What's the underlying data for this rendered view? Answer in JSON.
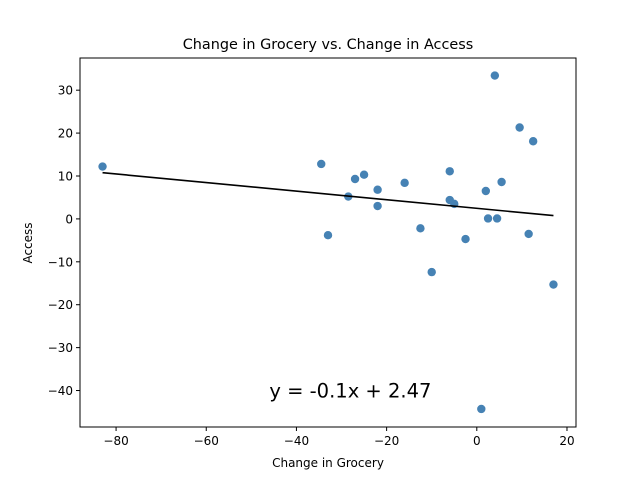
{
  "chart_data": {
    "type": "scatter",
    "title": "Change in Grocery vs. Change in Access",
    "xlabel": "Change in Grocery",
    "ylabel": "Access",
    "xlim": [
      -88,
      22
    ],
    "ylim": [
      -48.5,
      37.5
    ],
    "xticks": [
      -80,
      -60,
      -40,
      -20,
      0,
      20
    ],
    "yticks": [
      -40,
      -30,
      -20,
      -10,
      0,
      10,
      20,
      30
    ],
    "xtick_labels": [
      "−80",
      "−60",
      "−40",
      "−20",
      "0",
      "20"
    ],
    "ytick_labels": [
      "−40",
      "−30",
      "−20",
      "−10",
      "0",
      "10",
      "20",
      "30"
    ],
    "grid": false,
    "point_color": "#4682b4",
    "line_color": "#000000",
    "points": [
      {
        "x": -83.0,
        "y": 12.2
      },
      {
        "x": -34.5,
        "y": 12.8
      },
      {
        "x": -33.0,
        "y": -3.8
      },
      {
        "x": -28.5,
        "y": 5.2
      },
      {
        "x": -27.0,
        "y": 9.3
      },
      {
        "x": -25.0,
        "y": 10.3
      },
      {
        "x": -22.0,
        "y": 6.8
      },
      {
        "x": -22.0,
        "y": 3.0
      },
      {
        "x": -16.0,
        "y": 8.4
      },
      {
        "x": -12.5,
        "y": -2.2
      },
      {
        "x": -10.0,
        "y": -12.4
      },
      {
        "x": -6.0,
        "y": 11.1
      },
      {
        "x": -6.0,
        "y": 4.4
      },
      {
        "x": -5.0,
        "y": 3.5
      },
      {
        "x": -2.5,
        "y": -4.7
      },
      {
        "x": 1.0,
        "y": -44.3
      },
      {
        "x": 2.0,
        "y": 6.5
      },
      {
        "x": 2.5,
        "y": 0.1
      },
      {
        "x": 4.0,
        "y": 33.4
      },
      {
        "x": 4.5,
        "y": 0.1
      },
      {
        "x": 5.5,
        "y": 8.6
      },
      {
        "x": 9.5,
        "y": 21.3
      },
      {
        "x": 11.5,
        "y": -3.5
      },
      {
        "x": 12.5,
        "y": 18.1
      },
      {
        "x": 17.0,
        "y": -15.3
      }
    ],
    "regression": {
      "slope": -0.1,
      "intercept": 2.47,
      "x_range": [
        -83.0,
        17.0
      ]
    },
    "annotation": {
      "text": "y = -0.1x + 2.47",
      "x": -46,
      "y": -40
    }
  }
}
